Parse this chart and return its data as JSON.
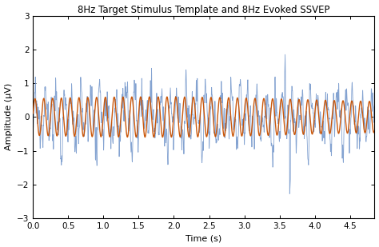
{
  "title": "8Hz Target Stimulus Template and 8Hz Evoked SSVEP",
  "xlabel": "Time (s)",
  "ylabel": "Amplitude (μV)",
  "xlim": [
    0,
    4.85
  ],
  "ylim": [
    -3,
    3
  ],
  "xticks": [
    0,
    0.5,
    1.0,
    1.5,
    2.0,
    2.5,
    3.0,
    3.5,
    4.0,
    4.5
  ],
  "yticks": [
    -3,
    -2,
    -1,
    0,
    1,
    2,
    3
  ],
  "duration": 4.85,
  "fs": 512,
  "freq_signal": 8,
  "template_amplitude": 0.52,
  "template_color": "#c85000",
  "ssvep_color": "#7799cc",
  "template_lw": 1.0,
  "ssvep_lw": 0.6,
  "title_fontsize": 8.5,
  "axis_label_fontsize": 8,
  "tick_fontsize": 7.5,
  "background_color": "#ffffff",
  "seed": 37
}
